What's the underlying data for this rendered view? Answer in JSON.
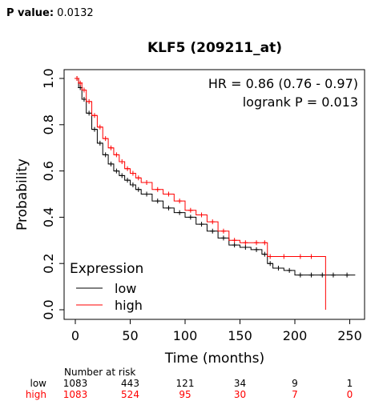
{
  "header": {
    "pvalue_label": "P value:",
    "pvalue": "0.0132"
  },
  "chart_data": {
    "type": "line",
    "title": "KLF5 (209211_at)",
    "xlabel": "Time (months)",
    "ylabel": "Probability",
    "xlim": [
      0,
      260
    ],
    "ylim": [
      0,
      1
    ],
    "xticks": [
      0,
      50,
      100,
      150,
      200,
      250
    ],
    "yticks": [
      0.0,
      0.2,
      0.4,
      0.6,
      0.8,
      1.0
    ],
    "annotations": [
      "HR = 0.86 (0.76 - 0.97)",
      "logrank P = 0.013"
    ],
    "legend": {
      "title": "Expression",
      "position": "bottom-left"
    },
    "series": [
      {
        "name": "low",
        "color": "#000000",
        "x": [
          0,
          3,
          6,
          10,
          15,
          20,
          25,
          30,
          35,
          40,
          45,
          50,
          55,
          60,
          70,
          80,
          90,
          100,
          110,
          120,
          130,
          140,
          150,
          160,
          170,
          175,
          180,
          190,
          200,
          210,
          220,
          230,
          240,
          255
        ],
        "y": [
          1.0,
          0.96,
          0.91,
          0.85,
          0.78,
          0.72,
          0.67,
          0.63,
          0.6,
          0.58,
          0.56,
          0.54,
          0.52,
          0.5,
          0.47,
          0.44,
          0.42,
          0.4,
          0.37,
          0.34,
          0.31,
          0.28,
          0.27,
          0.26,
          0.24,
          0.2,
          0.18,
          0.17,
          0.15,
          0.15,
          0.15,
          0.15,
          0.15,
          0.15
        ]
      },
      {
        "name": "high",
        "color": "#ff0000",
        "x": [
          0,
          3,
          6,
          10,
          15,
          20,
          25,
          30,
          35,
          40,
          45,
          50,
          55,
          60,
          70,
          80,
          90,
          100,
          110,
          120,
          130,
          140,
          150,
          160,
          170,
          175,
          180,
          200,
          210,
          220,
          228
        ],
        "y": [
          1.0,
          0.98,
          0.95,
          0.9,
          0.84,
          0.79,
          0.74,
          0.7,
          0.67,
          0.64,
          0.61,
          0.59,
          0.57,
          0.55,
          0.52,
          0.5,
          0.47,
          0.43,
          0.41,
          0.38,
          0.34,
          0.3,
          0.29,
          0.29,
          0.29,
          0.23,
          0.23,
          0.23,
          0.23,
          0.23,
          0.0
        ]
      }
    ],
    "risk_table": {
      "title": "Number at risk",
      "times": [
        0,
        50,
        100,
        150,
        200,
        250
      ],
      "rows": [
        {
          "name": "low",
          "color": "#000000",
          "counts": [
            "1083",
            "443",
            "121",
            "34",
            "9",
            "1"
          ]
        },
        {
          "name": "high",
          "color": "#ff0000",
          "counts": [
            "1083",
            "524",
            "95",
            "30",
            "7",
            "0"
          ]
        }
      ]
    }
  }
}
